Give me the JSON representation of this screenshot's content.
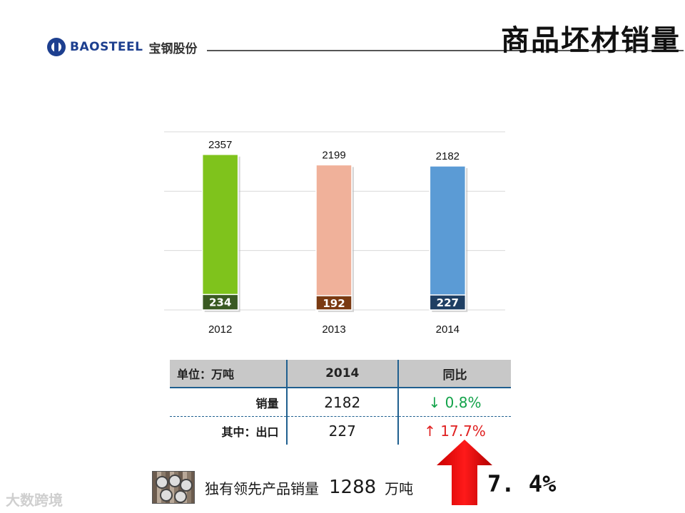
{
  "header": {
    "logo_en": "BAOSTEEL",
    "logo_cn": "宝钢股份",
    "title": "商品坯材销量"
  },
  "chart_data": {
    "type": "bar",
    "categories": [
      "2012",
      "2013",
      "2014"
    ],
    "series": [
      {
        "values": [
          2357,
          2199,
          2182
        ],
        "colors": [
          "#7fc31c",
          "#f0b19a",
          "#5b9bd5"
        ]
      },
      {
        "values": [
          234,
          192,
          227
        ],
        "colors": [
          "#3a5a22",
          "#7a3a12",
          "#1f3f63"
        ]
      }
    ],
    "total_labels": [
      "2357",
      "2199",
      "2182"
    ],
    "sub_labels": [
      "234",
      "192",
      "227"
    ],
    "ylim": [
      0,
      2700
    ],
    "grid": true
  },
  "table": {
    "header": [
      "单位：万吨",
      "2014",
      "同比"
    ],
    "rows": [
      {
        "label": "销量",
        "value": "2182",
        "change": "↓ 0.8%"
      },
      {
        "label": "其中：出口",
        "value": "227",
        "change": "↑ 17.7%"
      }
    ]
  },
  "footer": {
    "text": "独有领先产品销量",
    "number": "1288",
    "unit": "万吨",
    "growth": "7. 4%",
    "watermark": "大数跨境"
  }
}
